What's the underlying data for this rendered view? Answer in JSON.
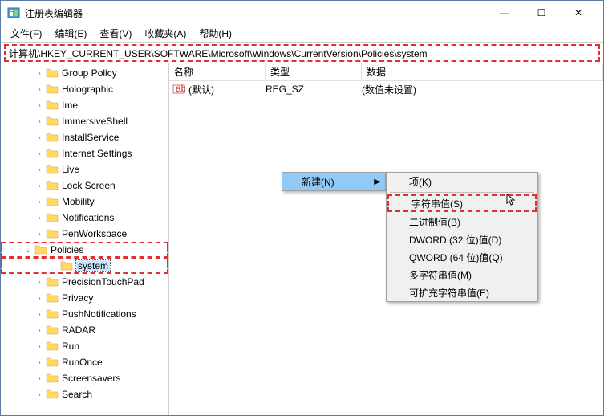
{
  "window": {
    "title": "注册表编辑器"
  },
  "winbuttons": {
    "min": "—",
    "max": "☐",
    "close": "✕"
  },
  "menu": {
    "file": "文件(F)",
    "edit": "编辑(E)",
    "view": "查看(V)",
    "fav": "收藏夹(A)",
    "help": "帮助(H)"
  },
  "address": "计算机\\HKEY_CURRENT_USER\\SOFTWARE\\Microsoft\\Windows\\CurrentVersion\\Policies\\system",
  "tree": [
    "Group Policy",
    "Holographic",
    "Ime",
    "ImmersiveShell",
    "InstallService",
    "Internet Settings",
    "Live",
    "Lock Screen",
    "Mobility",
    "Notifications",
    "PenWorkspace",
    "Policies",
    "system",
    "PrecisionTouchPad",
    "Privacy",
    "PushNotifications",
    "RADAR",
    "Run",
    "RunOnce",
    "Screensavers",
    "Search"
  ],
  "tree_expanders": {
    "policies": "⌄",
    "default": "›"
  },
  "columns": {
    "name": "名称",
    "type": "类型",
    "data": "数据"
  },
  "value": {
    "name": "(默认)",
    "type": "REG_SZ",
    "data": "(数值未设置)"
  },
  "ctx1": {
    "new": "新建(N)"
  },
  "ctx2": {
    "key": "项(K)",
    "string": "字符串值(S)",
    "binary": "二进制值(B)",
    "dword": "DWORD (32 位)值(D)",
    "qword": "QWORD (64 位)值(Q)",
    "multi": "多字符串值(M)",
    "expand": "可扩充字符串值(E)"
  },
  "colors": {
    "highlight_red": "#e03030",
    "menu_highlight": "#91c9f7",
    "selection_bg": "#cce8ff",
    "folder_fill": "#ffd868"
  }
}
